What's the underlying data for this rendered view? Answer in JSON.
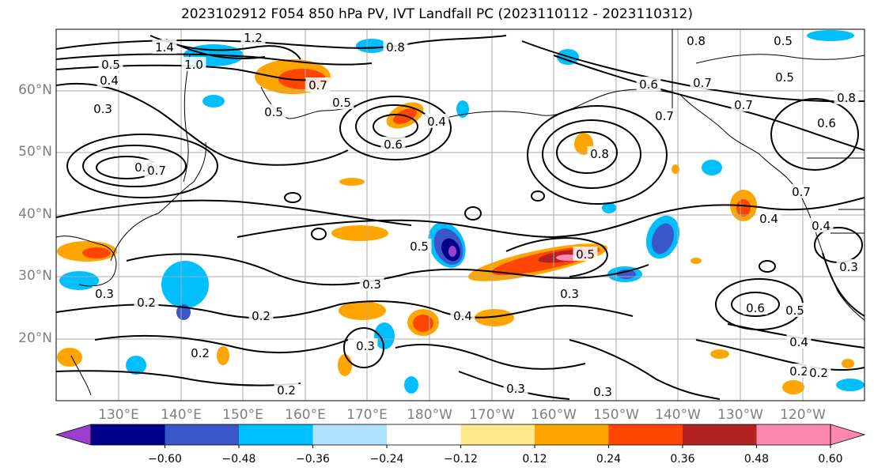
{
  "title": "2023102912 F054 850 hPa PV, IVT Landfall PC (2023110112 - 2023110312)",
  "lat_labels": [
    "60°N",
    "50°N",
    "40°N",
    "30°N",
    "20°N"
  ],
  "lon_labels": [
    "130°E",
    "140°E",
    "150°E",
    "160°E",
    "170°E",
    "180°W",
    "170°W",
    "160°W",
    "150°W",
    "140°W",
    "130°W",
    "120°W"
  ],
  "colorbar": {
    "tick_labels": [
      "−0.60",
      "−0.48",
      "−0.36",
      "−0.24",
      "−0.12",
      "0.12",
      "0.24",
      "0.36",
      "0.48",
      "0.60"
    ],
    "colors": [
      "#9a3fd0",
      "#00008b",
      "#3a56c8",
      "#00bfff",
      "#b0e2ff",
      "#ffffff",
      "#ffe98a",
      "#ffa500",
      "#ff4500",
      "#b22222",
      "#ff88b0"
    ]
  },
  "contour_labels": [
    "1.2",
    "1.4",
    "1.0",
    "0.8",
    "0.7",
    "0.5",
    "0.5",
    "0.5",
    "0.3",
    "0.4",
    "0.6",
    "0.4",
    "0.8",
    "0.8",
    "0.6",
    "0.7",
    "0.8",
    "0.7",
    "0.5",
    "0.7",
    "0.7",
    "0.4",
    "0.5",
    "0.3",
    "0.2",
    "0.2",
    "0.3",
    "0.4",
    "0.3",
    "0.3",
    "0.6",
    "0.5",
    "0.4",
    "0.3",
    "0.2",
    "0.2",
    "0.2",
    "0.3",
    "0.2",
    "0.5",
    "0.5",
    "0.6",
    "0.4",
    "0.8",
    "0.7",
    "0.3"
  ]
}
